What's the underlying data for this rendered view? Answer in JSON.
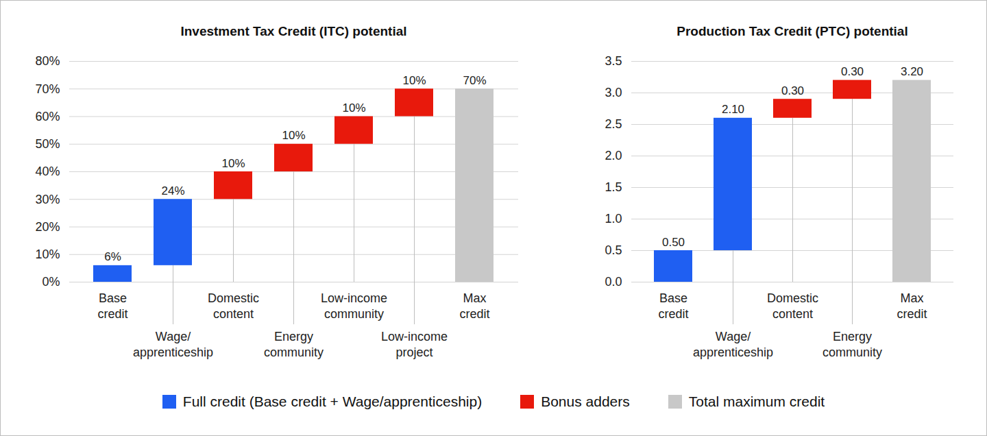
{
  "chart_data": [
    {
      "type": "waterfall",
      "title": "Investment Tax Credit (ITC) potential",
      "categories": [
        "Base credit",
        "Wage/apprenticeship",
        "Domestic content",
        "Energy community",
        "Low-income community",
        "Low-income project",
        "Max credit"
      ],
      "series": [
        {
          "name": "Full credit (Base credit + Wage/apprenticeship)",
          "type": "increase",
          "color": "#1f5ff2",
          "values": [
            6,
            24,
            null,
            null,
            null,
            null,
            null
          ],
          "value_labels": [
            "6%",
            "24%",
            null,
            null,
            null,
            null,
            null
          ]
        },
        {
          "name": "Bonus adders",
          "type": "increase",
          "color": "#e8190c",
          "values": [
            null,
            null,
            10,
            10,
            10,
            10,
            null
          ],
          "value_labels": [
            null,
            null,
            "10%",
            "10%",
            "10%",
            "10%",
            null
          ]
        },
        {
          "name": "Total maximum credit",
          "type": "total",
          "color": "#c8c8c8",
          "values": [
            null,
            null,
            null,
            null,
            null,
            null,
            70
          ],
          "value_labels": [
            null,
            null,
            null,
            null,
            null,
            null,
            "70%"
          ]
        }
      ],
      "ylim": [
        0,
        80
      ],
      "yticks": [
        {
          "value": 0,
          "label": "0%"
        },
        {
          "value": 10,
          "label": "10%"
        },
        {
          "value": 20,
          "label": "20%"
        },
        {
          "value": 30,
          "label": "30%"
        },
        {
          "value": 40,
          "label": "40%"
        },
        {
          "value": 50,
          "label": "50%"
        },
        {
          "value": 60,
          "label": "60%"
        },
        {
          "value": 70,
          "label": "70%"
        },
        {
          "value": 80,
          "label": "80%"
        }
      ],
      "grid": true,
      "data_labels": true,
      "legend": "bottom"
    },
    {
      "type": "waterfall",
      "title": "Production Tax Credit (PTC) potential",
      "categories": [
        "Base credit",
        "Wage/apprenticeship",
        "Domestic content",
        "Energy community",
        "Max credit"
      ],
      "series": [
        {
          "name": "Full credit (Base credit + Wage/apprenticeship)",
          "type": "increase",
          "color": "#1f5ff2",
          "values": [
            0.5,
            2.1,
            null,
            null,
            null
          ],
          "value_labels": [
            "0.50",
            "2.10",
            null,
            null,
            null
          ]
        },
        {
          "name": "Bonus adders",
          "type": "increase",
          "color": "#e8190c",
          "values": [
            null,
            null,
            0.3,
            0.3,
            null
          ],
          "value_labels": [
            null,
            null,
            "0.30",
            "0.30",
            null
          ]
        },
        {
          "name": "Total maximum credit",
          "type": "total",
          "color": "#c8c8c8",
          "values": [
            null,
            null,
            null,
            null,
            3.2
          ],
          "value_labels": [
            null,
            null,
            null,
            null,
            "3.20"
          ]
        }
      ],
      "ylim": [
        0,
        3.5
      ],
      "yticks": [
        {
          "value": 0,
          "label": "0.0"
        },
        0.5,
        {
          "value": 1,
          "label": "1.0"
        },
        1.5,
        {
          "value": 2,
          "label": "2.0"
        },
        2.5,
        {
          "value": 3,
          "label": "3.0"
        },
        3.5
      ],
      "grid": true,
      "data_labels": true,
      "legend": "bottom"
    }
  ]
}
